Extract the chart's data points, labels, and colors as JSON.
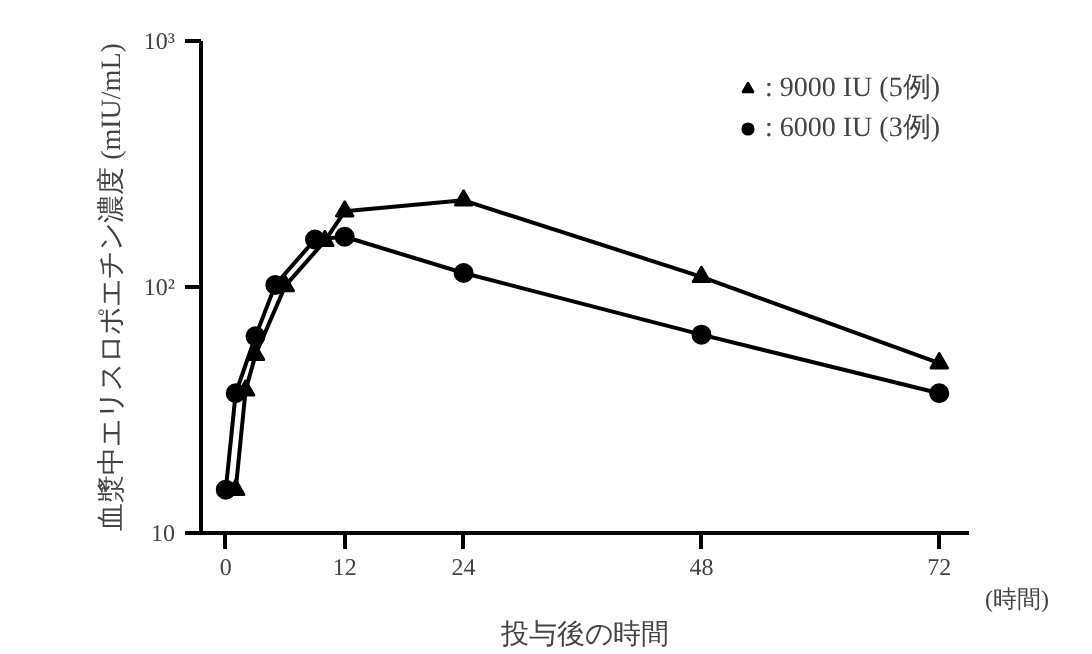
{
  "chart_data": {
    "type": "line",
    "xlabel": "投与後の時間",
    "ylabel": "血漿中エリスロポエチン濃度 (mIU/mL)",
    "annotations": [
      "(時間)"
    ],
    "xlim": [
      -2.5,
      75
    ],
    "xticks": [
      0,
      12,
      24,
      48,
      72
    ],
    "ylim": [
      10,
      1000
    ],
    "yticks": [
      10,
      {
        "value": 100,
        "label": "10²"
      },
      {
        "value": 1000,
        "label": "10³"
      }
    ],
    "log": "y",
    "grid": false,
    "legend": "top right",
    "line_style": "solid",
    "series": [
      {
        "name": ": 9000 IU (5例)",
        "color": "#000000",
        "marker": "triangle",
        "x": [
          1,
          2,
          3,
          6,
          10,
          12,
          24,
          48,
          72
        ],
        "values": [
          15,
          38,
          53,
          101,
          154,
          203,
          225,
          110,
          49
        ]
      },
      {
        "name": ": 6000 IU (3例)",
        "color": "#000000",
        "marker": "circle",
        "x": [
          0,
          1,
          3,
          5,
          9,
          12,
          24,
          48,
          72
        ],
        "values": [
          15,
          37,
          63,
          102,
          156,
          160,
          114,
          64,
          37
        ]
      }
    ]
  }
}
